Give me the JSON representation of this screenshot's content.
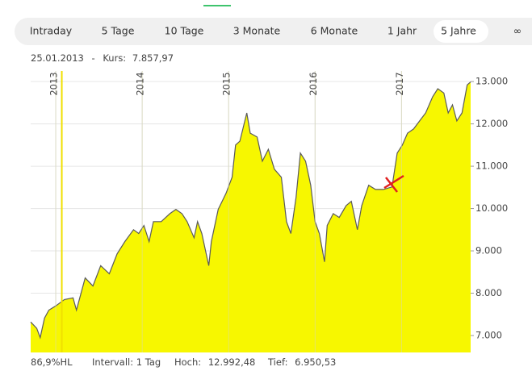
{
  "tabs": [
    "Intraday",
    "5 Tage",
    "10 Tage",
    "3 Monate",
    "6 Monate",
    "1 Jahr",
    "5 Jahre",
    "∞"
  ],
  "selected_tab": 6,
  "header": {
    "date": "25.01.2013",
    "separator": "-",
    "label": "Kurs:",
    "value": "7.857,97"
  },
  "chart_data": {
    "type": "area",
    "x": [
      2012.71,
      2012.78,
      2012.82,
      2012.87,
      2012.92,
      2013.0,
      2013.1,
      2013.2,
      2013.24,
      2013.34,
      2013.43,
      2013.52,
      2013.62,
      2013.71,
      2013.8,
      2013.9,
      2013.96,
      2014.02,
      2014.08,
      2014.13,
      2014.22,
      2014.32,
      2014.39,
      2014.46,
      2014.52,
      2014.6,
      2014.64,
      2014.69,
      2014.77,
      2014.8,
      2014.88,
      2014.97,
      2015.04,
      2015.08,
      2015.13,
      2015.21,
      2015.25,
      2015.33,
      2015.39,
      2015.46,
      2015.53,
      2015.61,
      2015.67,
      2015.72,
      2015.78,
      2015.83,
      2015.89,
      2015.95,
      2016.0,
      2016.05,
      2016.11,
      2016.14,
      2016.21,
      2016.28,
      2016.36,
      2016.42,
      2016.49,
      2016.54,
      2016.62,
      2016.7,
      2016.79,
      2016.89,
      2016.95,
      2017.01,
      2017.07,
      2017.14,
      2017.21,
      2017.28,
      2017.36,
      2017.42,
      2017.49,
      2017.54,
      2017.59,
      2017.64,
      2017.7,
      2017.76,
      2017.8
    ],
    "series": [
      {
        "color": "#f7f700",
        "line_color": "#5a5a5a",
        "values": [
          7320,
          7170,
          6950,
          7410,
          7600,
          7700,
          7850,
          7890,
          7600,
          8360,
          8170,
          8650,
          8460,
          8930,
          9220,
          9500,
          9410,
          9600,
          9220,
          9690,
          9690,
          9880,
          9980,
          9880,
          9690,
          9310,
          9690,
          9410,
          8650,
          9220,
          9980,
          10360,
          10740,
          11500,
          11590,
          12260,
          11780,
          11690,
          11120,
          11400,
          10930,
          10740,
          9690,
          9410,
          10260,
          11310,
          11120,
          10550,
          9690,
          9410,
          8740,
          9600,
          9880,
          9790,
          10070,
          10170,
          9500,
          10070,
          10550,
          10450,
          10450,
          10510,
          11310,
          11500,
          11780,
          11880,
          12070,
          12260,
          12640,
          12830,
          12730,
          12260,
          12450,
          12070,
          12260,
          12920,
          12990
        ]
      }
    ],
    "xlim": [
      2012.71,
      2017.8
    ],
    "xticks": [
      2013,
      2014,
      2015,
      2016,
      2017
    ],
    "ylim": [
      6600,
      13250
    ],
    "yticks": [
      {
        "value": 7000,
        "label": "7.000"
      },
      {
        "value": 8000,
        "label": "8.000"
      },
      {
        "value": 9000,
        "label": "9.000"
      },
      {
        "value": 10000,
        "label": "10.000"
      },
      {
        "value": 11000,
        "label": "11.000"
      },
      {
        "value": 12000,
        "label": "12.000"
      },
      {
        "value": 13000,
        "label": "13.000"
      }
    ],
    "cursor_x": 2013.07,
    "grid": true
  },
  "footer": {
    "range": "86,9%HL",
    "interval": "Intervall: 1 Tag",
    "high_label": "Hoch:",
    "high": "12.992,48",
    "low_label": "Tief:",
    "low": "6.950,53"
  }
}
